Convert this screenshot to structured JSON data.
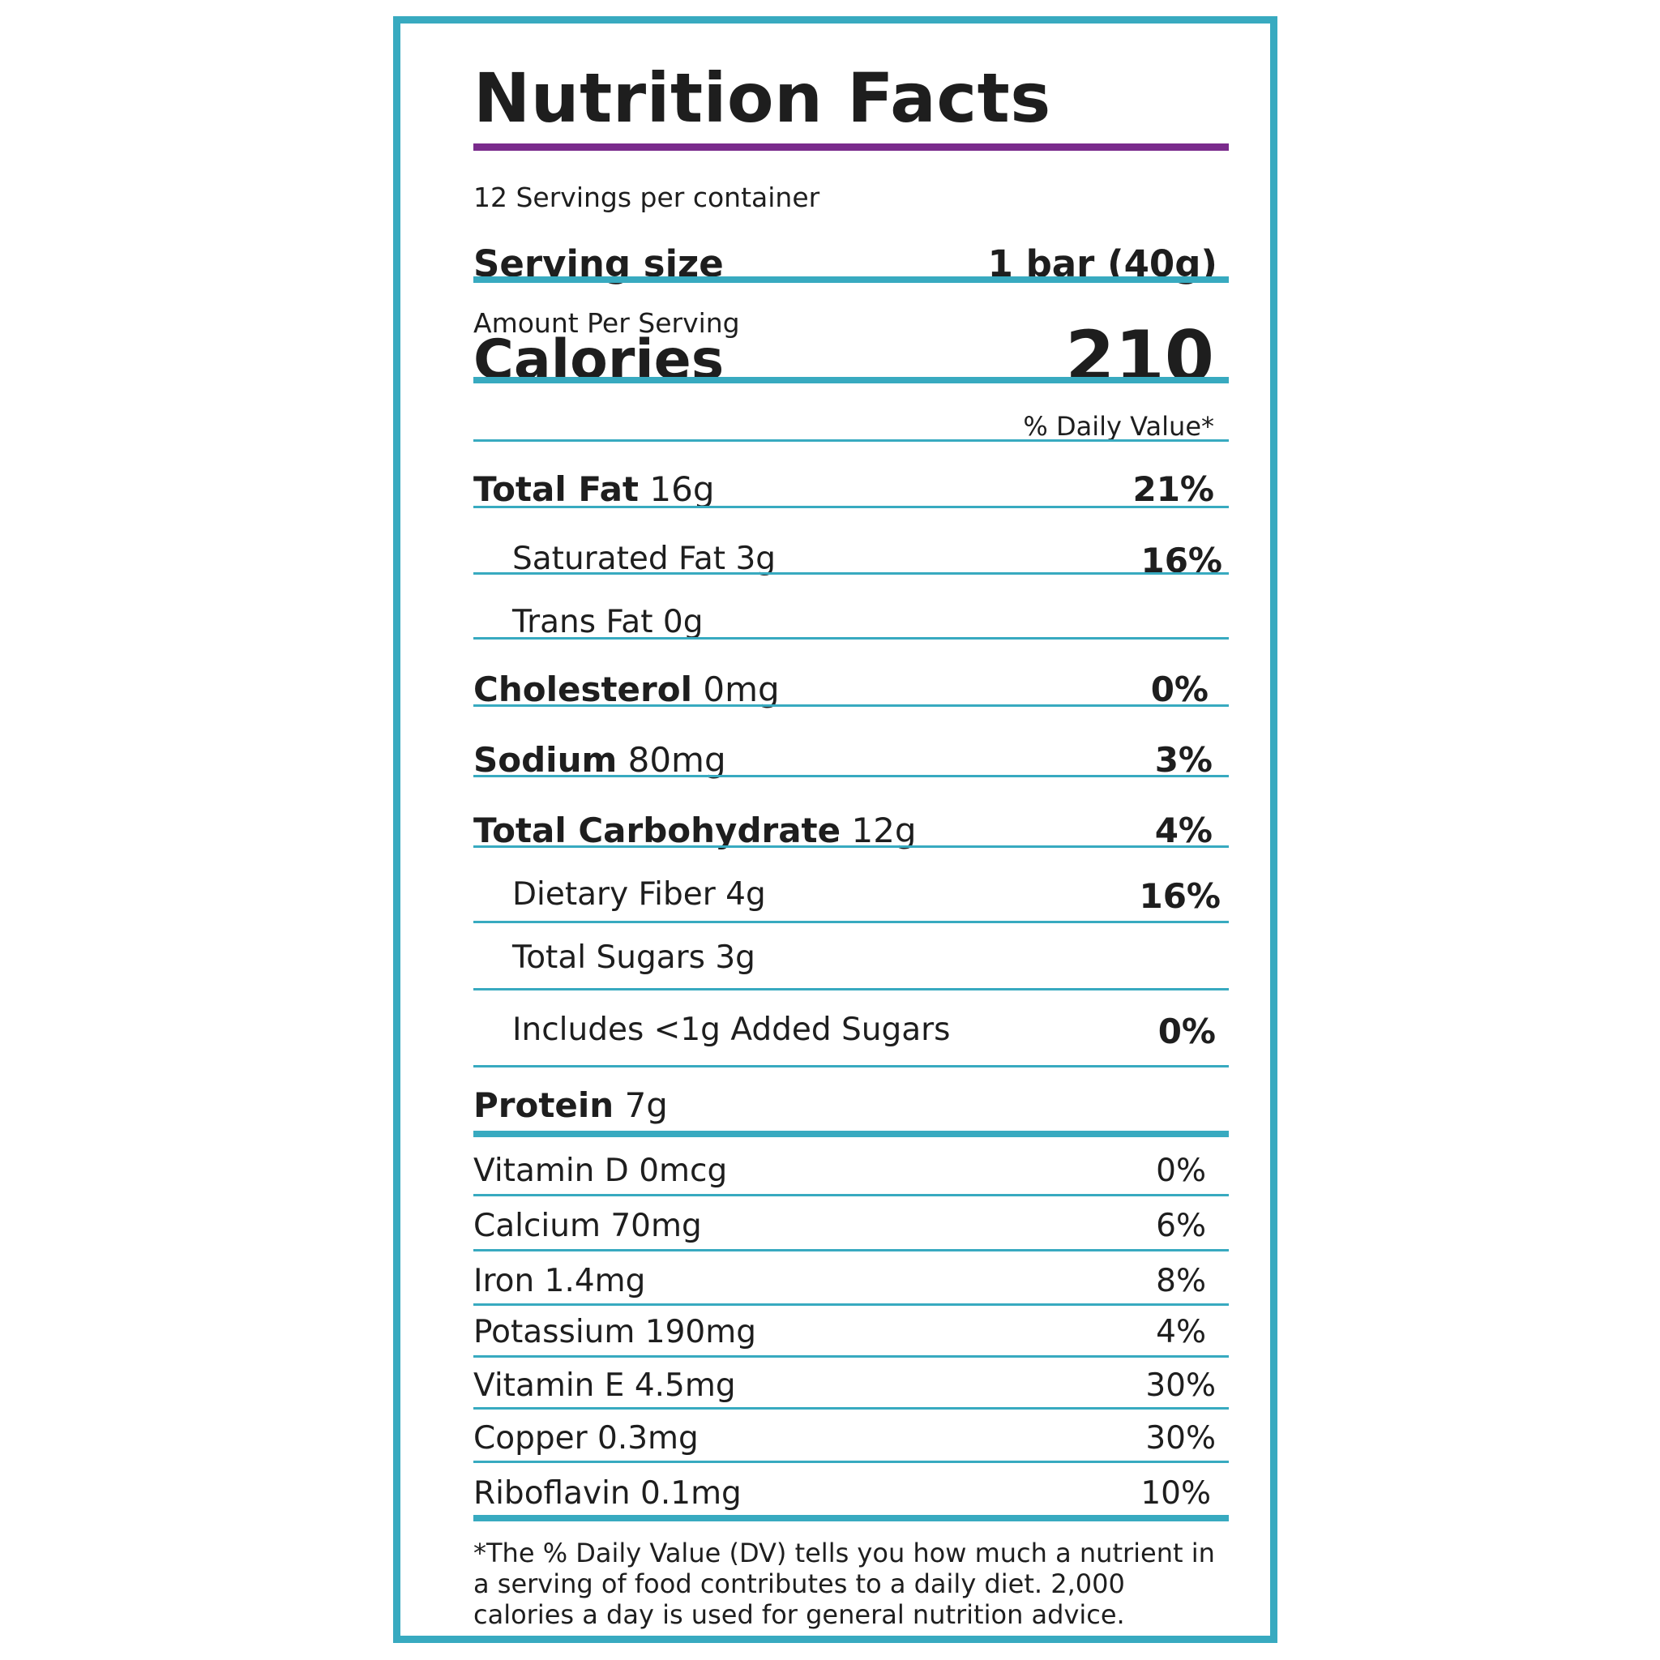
{
  "title": "Nutrition Facts",
  "servings_per_container": "12 Servings per container",
  "serving_size": {
    "label": "Serving size",
    "value": "1 bar (40g)"
  },
  "calories": {
    "amount_per_serving": "Amount Per Serving",
    "label": "Calories",
    "value": "210"
  },
  "daily_value_header": "% Daily Value*",
  "nutrients": [
    {
      "name": "Total Fat",
      "amount": "16g",
      "dv": "21%"
    },
    {
      "name": "Saturated Fat 3g",
      "dv": "16%"
    },
    {
      "name": "Trans Fat 0g",
      "dv": ""
    },
    {
      "name": "Cholesterol",
      "amount": "0mg",
      "dv": "0%"
    },
    {
      "name": "Sodium",
      "amount": "80mg",
      "dv": "3%"
    },
    {
      "name": "Total Carbohydrate",
      "amount": "12g",
      "dv": "4%"
    },
    {
      "name": "Dietary Fiber 4g",
      "dv": "16%"
    },
    {
      "name": "Total Sugars 3g",
      "dv": ""
    },
    {
      "name": "Includes <1g Added Sugars",
      "dv": "0%"
    },
    {
      "name": "Protein",
      "amount": "7g",
      "dv": ""
    }
  ],
  "vitamins": [
    {
      "name": "Vitamin D 0mcg",
      "dv": "0%"
    },
    {
      "name": "Calcium 70mg",
      "dv": "6%"
    },
    {
      "name": "Iron 1.4mg",
      "dv": "8%"
    },
    {
      "name": "Potassium 190mg",
      "dv": "4%"
    },
    {
      "name": "Vitamin E 4.5mg",
      "dv": "30%"
    },
    {
      "name": "Copper 0.3mg",
      "dv": "30%"
    },
    {
      "name": "Riboflavin 0.1mg",
      "dv": "10%"
    }
  ],
  "footnote": "*The % Daily Value (DV) tells you how much a nutrient in a serving of food contributes to a daily diet. 2,000 calories a day is used for general nutrition advice.",
  "colors": {
    "border": "#38aac0",
    "title_rule": "#7a2b8c",
    "text": "#1e1e1e"
  }
}
